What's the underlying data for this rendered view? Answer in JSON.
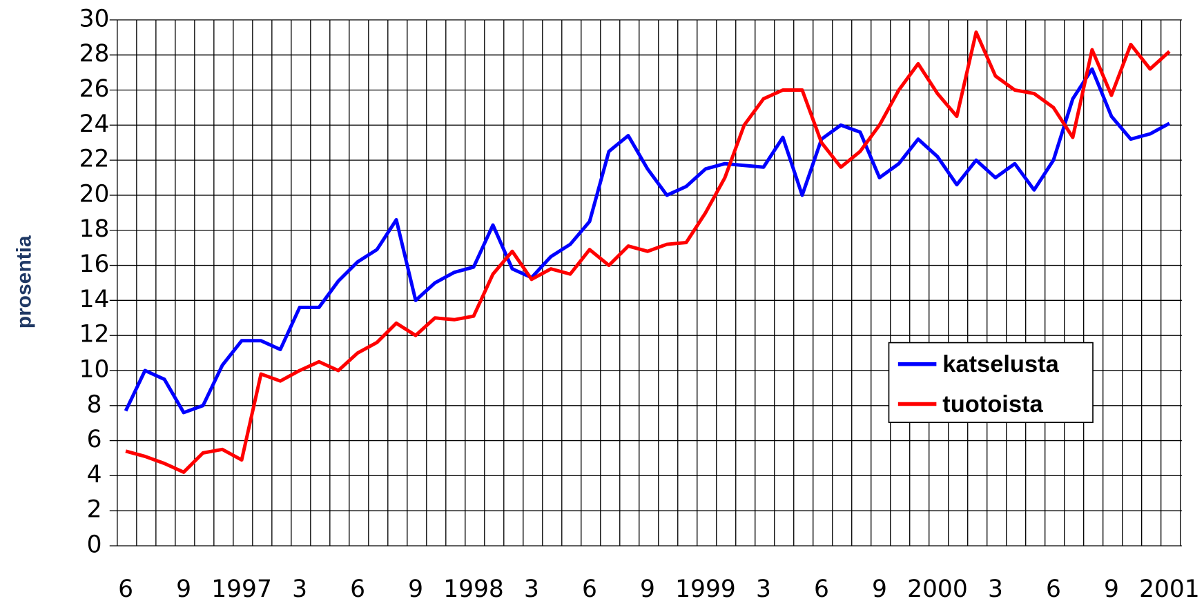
{
  "chart_data": {
    "type": "line",
    "ylabel": "prosentia",
    "categories": [
      "6",
      null,
      null,
      "9",
      null,
      null,
      "1997",
      null,
      null,
      "3",
      null,
      null,
      "6",
      null,
      null,
      "9",
      null,
      null,
      "1998",
      null,
      null,
      "3",
      null,
      null,
      "6",
      null,
      null,
      "9",
      null,
      null,
      "1999",
      null,
      null,
      "3",
      null,
      null,
      "6",
      null,
      null,
      "9",
      null,
      null,
      "2000",
      null,
      null,
      "3",
      null,
      null,
      "6",
      null,
      null,
      "9",
      null,
      null,
      "2001"
    ],
    "series": [
      {
        "name": "katselusta",
        "color": "#0000ff",
        "values": [
          7.7,
          10.0,
          9.5,
          7.6,
          8.0,
          10.3,
          11.7,
          11.7,
          11.2,
          13.6,
          13.6,
          15.1,
          16.2,
          16.9,
          18.6,
          14.0,
          15.0,
          15.6,
          15.9,
          18.3,
          15.8,
          15.3,
          16.5,
          17.2,
          18.5,
          22.5,
          23.4,
          21.5,
          20.0,
          20.5,
          21.5,
          21.8,
          21.7,
          21.6,
          23.3,
          20.0,
          23.2,
          24.0,
          23.6,
          21.0,
          21.8,
          23.2,
          22.2,
          20.6,
          22.0,
          21.0,
          21.8,
          20.3,
          22.0,
          25.5,
          27.2,
          24.5,
          23.2,
          23.5,
          24.1
        ]
      },
      {
        "name": "tuotoista",
        "color": "#ff0000",
        "values": [
          5.4,
          5.1,
          4.7,
          4.2,
          5.3,
          5.5,
          4.9,
          9.8,
          9.4,
          10.0,
          10.5,
          10.0,
          11.0,
          11.6,
          12.7,
          12.0,
          13.0,
          12.9,
          13.1,
          15.5,
          16.8,
          15.2,
          15.8,
          15.5,
          16.9,
          16.0,
          17.1,
          16.8,
          17.2,
          17.3,
          19.0,
          21.0,
          24.0,
          25.5,
          26.0,
          26.0,
          23.0,
          21.6,
          22.5,
          24.0,
          26.0,
          27.5,
          25.8,
          24.5,
          29.3,
          26.8,
          26.0,
          25.8,
          25.0,
          23.3,
          28.3,
          25.7,
          28.6,
          27.2,
          28.2
        ]
      }
    ],
    "ylim": [
      0,
      30
    ],
    "yticks": [
      0,
      2,
      4,
      6,
      8,
      10,
      12,
      14,
      16,
      18,
      20,
      22,
      24,
      26,
      28,
      30
    ],
    "grid": true,
    "legend": "right"
  }
}
